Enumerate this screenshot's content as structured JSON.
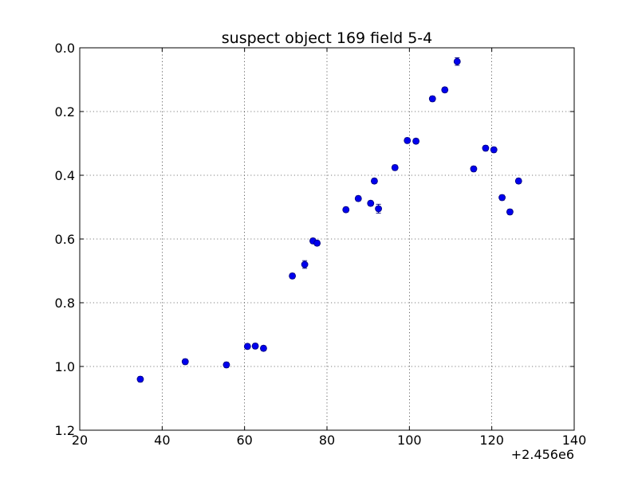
{
  "chart_data": {
    "type": "scatter",
    "title": "suspect object 169 field 5-4",
    "xlabel": "",
    "ylabel": "",
    "x_offset_label": "+2.456e6",
    "xlim": [
      20,
      140
    ],
    "ylim": [
      0.0,
      1.2
    ],
    "y_inverted": true,
    "x_ticks": [
      "20",
      "40",
      "60",
      "80",
      "100",
      "120",
      "140"
    ],
    "y_ticks": [
      "0.0",
      "0.2",
      "0.4",
      "0.6",
      "0.8",
      "1.0",
      "1.2"
    ],
    "grid": true,
    "marker_color": "#0000ee",
    "series": [
      {
        "points": [
          {
            "x": 34.7,
            "y": 1.04,
            "err": 0.008
          },
          {
            "x": 45.6,
            "y": 0.985,
            "err": 0.008
          },
          {
            "x": 55.6,
            "y": 0.995,
            "err": 0.008
          },
          {
            "x": 60.7,
            "y": 0.937,
            "err": 0.008
          },
          {
            "x": 62.6,
            "y": 0.936,
            "err": 0.008
          },
          {
            "x": 64.6,
            "y": 0.943,
            "err": 0.008
          },
          {
            "x": 71.6,
            "y": 0.716,
            "err": 0.008
          },
          {
            "x": 74.6,
            "y": 0.68,
            "err": 0.012
          },
          {
            "x": 76.6,
            "y": 0.606,
            "err": 0.008
          },
          {
            "x": 77.6,
            "y": 0.613,
            "err": 0.008
          },
          {
            "x": 84.6,
            "y": 0.508,
            "err": 0.008
          },
          {
            "x": 87.6,
            "y": 0.473,
            "err": 0.008
          },
          {
            "x": 90.6,
            "y": 0.488,
            "err": 0.008
          },
          {
            "x": 91.5,
            "y": 0.418,
            "err": 0.008
          },
          {
            "x": 92.5,
            "y": 0.505,
            "err": 0.014
          },
          {
            "x": 96.5,
            "y": 0.376,
            "err": 0.008
          },
          {
            "x": 99.5,
            "y": 0.291,
            "err": 0.008
          },
          {
            "x": 101.6,
            "y": 0.293,
            "err": 0.008
          },
          {
            "x": 105.6,
            "y": 0.16,
            "err": 0.008
          },
          {
            "x": 108.6,
            "y": 0.132,
            "err": 0.008
          },
          {
            "x": 111.6,
            "y": 0.043,
            "err": 0.012
          },
          {
            "x": 115.6,
            "y": 0.38,
            "err": 0.008
          },
          {
            "x": 118.5,
            "y": 0.315,
            "err": 0.008
          },
          {
            "x": 120.5,
            "y": 0.32,
            "err": 0.008
          },
          {
            "x": 122.5,
            "y": 0.47,
            "err": 0.008
          },
          {
            "x": 124.4,
            "y": 0.515,
            "err": 0.008
          },
          {
            "x": 126.5,
            "y": 0.418,
            "err": 0.008
          }
        ]
      }
    ]
  }
}
